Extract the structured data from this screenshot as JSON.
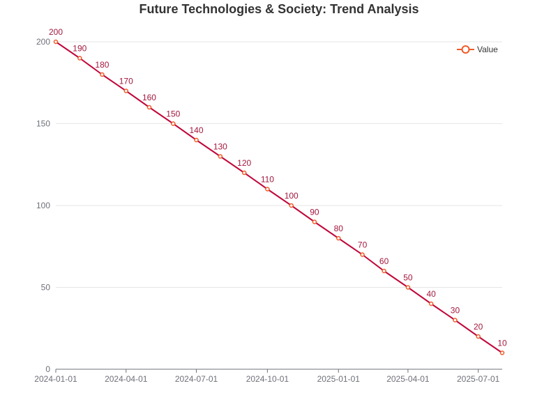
{
  "chart_data": {
    "type": "line",
    "title": "Future Technologies & Society: Trend Analysis",
    "xlabel": "",
    "ylabel": "",
    "x": [
      "2024-01-01",
      "2024-02-01",
      "2024-03-01",
      "2024-04-01",
      "2024-05-01",
      "2024-06-01",
      "2024-07-01",
      "2024-08-01",
      "2024-09-01",
      "2024-10-01",
      "2024-11-01",
      "2024-12-01",
      "2025-01-01",
      "2025-02-01",
      "2025-03-01",
      "2025-04-01",
      "2025-05-01",
      "2025-06-01",
      "2025-07-01",
      "2025-08-01"
    ],
    "x_ticks": [
      "2024-01-01",
      "2024-04-01",
      "2024-07-01",
      "2024-10-01",
      "2025-01-01",
      "2025-04-01",
      "2025-07-01"
    ],
    "ylim": [
      0,
      200
    ],
    "y_ticks": [
      0,
      50,
      100,
      150,
      200
    ],
    "grid": true,
    "legend_position": "top-right",
    "series": [
      {
        "name": "Value",
        "values": [
          200,
          190,
          180,
          170,
          160,
          150,
          140,
          130,
          120,
          110,
          100,
          90,
          80,
          70,
          60,
          50,
          40,
          30,
          20,
          10
        ]
      }
    ],
    "colors": {
      "line": "#c0073a",
      "marker": "#f05a28",
      "label": "#a3183e",
      "grid": "#e6e6e6",
      "axis": "#6e7079"
    }
  }
}
